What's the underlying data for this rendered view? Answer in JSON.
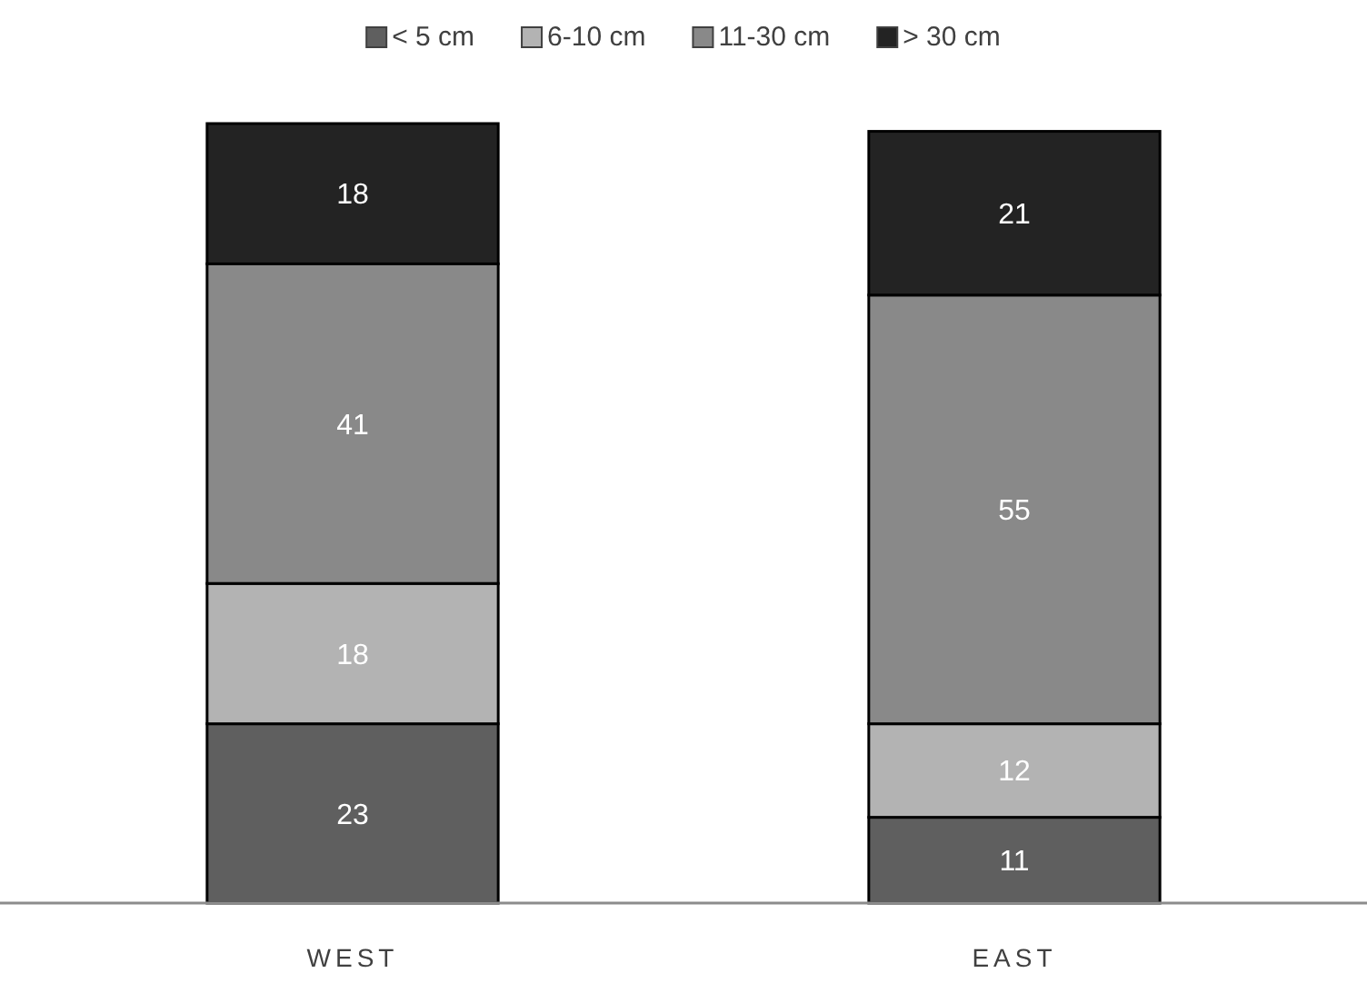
{
  "chart_data": {
    "type": "bar",
    "stacked": true,
    "data_labels": true,
    "legend": "top",
    "categories": [
      "WEST",
      "EAST"
    ],
    "series": [
      {
        "name": "< 5 cm",
        "color": "#5f5f5f",
        "values": [
          23,
          11
        ]
      },
      {
        "name": "6-10 cm",
        "color": "#b3b3b3",
        "values": [
          18,
          12
        ]
      },
      {
        "name": "11-30 cm",
        "color": "#898989",
        "values": [
          41,
          55
        ]
      },
      {
        "name": "> 30 cm",
        "color": "#232323",
        "values": [
          18,
          21
        ]
      }
    ]
  }
}
